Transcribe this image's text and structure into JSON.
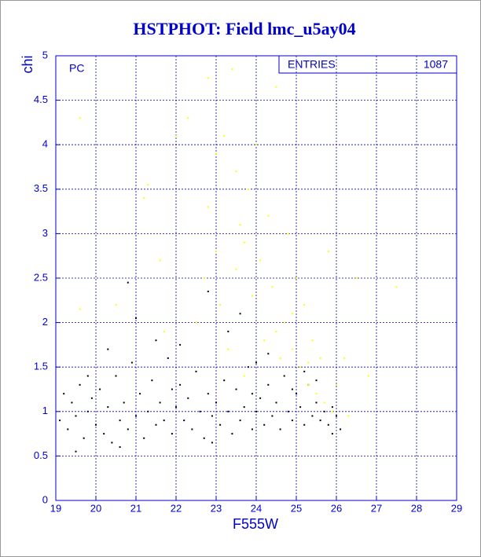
{
  "chart_data": {
    "type": "scatter",
    "title": "HSTPHOT: Field lmc_u5ay04",
    "x_label": "F555W",
    "y_label": "chi",
    "annotation": "PC",
    "stats_label": "ENTRIES",
    "stats_value": "1087",
    "xlim": [
      19,
      29
    ],
    "ylim": [
      0,
      5
    ],
    "xticks": [
      19,
      20,
      21,
      22,
      23,
      24,
      25,
      26,
      27,
      28,
      29
    ],
    "yticks": [
      0,
      0.5,
      1,
      1.5,
      2,
      2.5,
      3,
      3.5,
      4,
      4.5,
      5
    ],
    "grid": true,
    "series": [
      {
        "color": "#000000",
        "x": [
          19.1,
          19.2,
          19.3,
          19.4,
          19.5,
          19.6,
          19.7,
          19.8,
          19.9,
          20.0,
          20.1,
          20.2,
          20.3,
          20.4,
          20.5,
          20.6,
          20.7,
          20.8,
          20.9,
          21.0,
          21.1,
          21.2,
          21.3,
          21.4,
          21.5,
          21.6,
          21.7,
          21.8,
          21.9,
          22.0,
          22.1,
          22.2,
          22.3,
          22.4,
          22.5,
          22.6,
          22.7,
          22.8,
          22.9,
          23.0,
          23.1,
          23.2,
          23.3,
          23.4,
          23.5,
          23.6,
          23.7,
          23.8,
          23.9,
          24.0,
          24.1,
          24.2,
          24.3,
          24.4,
          24.5,
          24.6,
          24.7,
          24.8,
          24.9,
          25.0,
          25.1,
          25.2,
          25.3,
          25.4,
          25.5,
          25.6,
          25.7,
          25.8,
          25.9,
          26.0,
          26.1,
          19.5,
          20.6,
          21.5,
          22.1,
          23.6,
          20.8,
          21.0,
          24.0,
          24.3,
          22.9,
          25.5,
          25.2,
          19.8,
          20.3,
          23.3,
          22.8,
          24.9,
          25.9,
          21.9,
          23.9
        ],
        "y": [
          0.9,
          1.2,
          0.8,
          1.1,
          0.95,
          1.3,
          0.7,
          1.0,
          1.15,
          0.85,
          1.25,
          0.75,
          1.05,
          0.65,
          1.4,
          0.9,
          1.1,
          0.8,
          1.55,
          0.95,
          1.2,
          0.7,
          1.0,
          1.35,
          0.85,
          1.1,
          0.9,
          1.6,
          0.75,
          1.05,
          1.3,
          0.9,
          1.15,
          0.8,
          1.45,
          1.0,
          0.7,
          1.2,
          0.95,
          1.1,
          0.85,
          1.35,
          1.0,
          0.75,
          1.25,
          0.9,
          1.05,
          1.5,
          0.8,
          1.0,
          1.15,
          0.85,
          1.3,
          0.95,
          1.1,
          0.8,
          1.4,
          1.0,
          0.9,
          1.2,
          1.05,
          0.85,
          1.3,
          0.95,
          1.1,
          0.9,
          1.0,
          0.85,
          1.05,
          0.95,
          0.8,
          0.55,
          0.6,
          1.8,
          1.75,
          2.1,
          2.45,
          2.05,
          1.55,
          1.65,
          0.65,
          1.35,
          1.45,
          1.4,
          1.7,
          1.9,
          2.35,
          1.25,
          0.75,
          1.25,
          1.2
        ]
      },
      {
        "color": "#ffff00",
        "x": [
          19.6,
          19.6,
          20.5,
          21.2,
          21.3,
          21.6,
          21.7,
          22.0,
          22.3,
          22.7,
          22.8,
          22.8,
          23.0,
          23.1,
          23.2,
          23.3,
          23.4,
          23.5,
          23.5,
          23.6,
          23.7,
          23.7,
          23.8,
          23.9,
          24.0,
          24.1,
          24.2,
          24.3,
          24.4,
          24.5,
          24.6,
          24.7,
          24.8,
          24.9,
          25.0,
          25.1,
          25.2,
          25.3,
          25.4,
          25.5,
          25.6,
          25.7,
          25.8,
          25.9,
          26.0,
          26.2,
          26.5,
          26.8,
          27.5,
          26.3,
          24.5,
          24.9,
          25.3,
          22.5,
          23.0
        ],
        "y": [
          4.3,
          2.15,
          2.2,
          3.4,
          3.55,
          2.7,
          1.9,
          4.1,
          4.3,
          2.5,
          3.3,
          4.75,
          3.9,
          2.2,
          4.1,
          1.7,
          4.85,
          3.7,
          2.6,
          3.1,
          1.4,
          2.9,
          3.5,
          2.3,
          4.0,
          2.7,
          1.8,
          3.2,
          2.4,
          4.65,
          1.6,
          2.0,
          3.0,
          1.7,
          2.5,
          1.5,
          2.2,
          1.3,
          1.8,
          1.2,
          1.6,
          1.1,
          2.8,
          1.0,
          1.3,
          1.6,
          2.5,
          1.4,
          2.4,
          0.95,
          1.9,
          2.1,
          1.55,
          2.0,
          2.8
        ]
      }
    ]
  }
}
